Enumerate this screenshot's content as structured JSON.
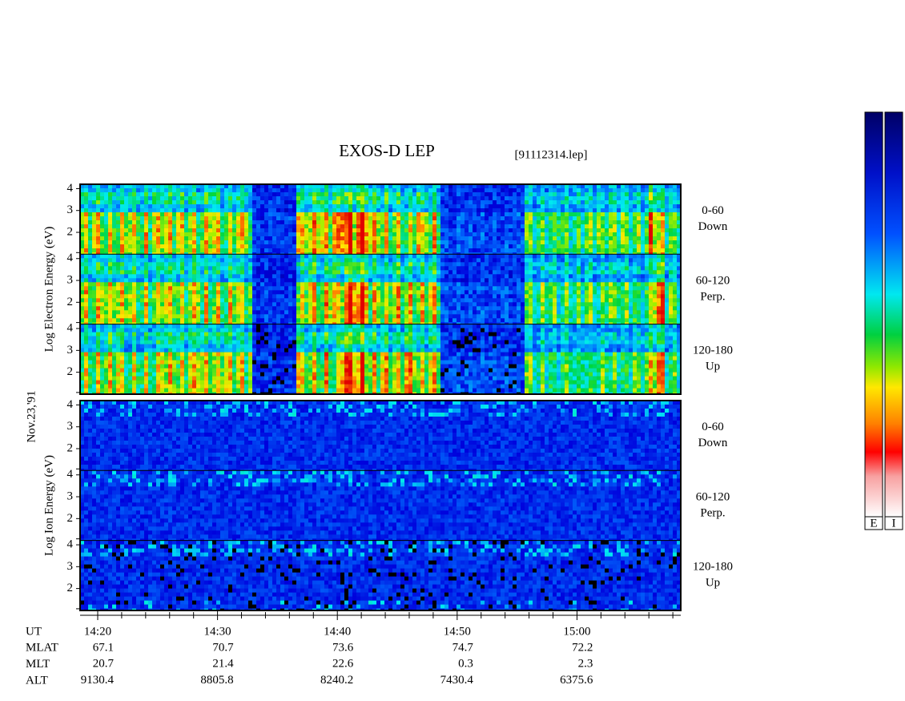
{
  "title": "EXOS-D LEP",
  "file": "[91112314.lep]",
  "date": "Nov.23,'91",
  "electron": {
    "axis_label": "Log Electron Energy (eV)",
    "panels": [
      {
        "angle": "0-60",
        "dir": "Down"
      },
      {
        "angle": "60-120",
        "dir": "Perp."
      },
      {
        "angle": "120-180",
        "dir": "Up"
      }
    ]
  },
  "ion": {
    "axis_label": "Log Ion Energy (eV)",
    "panels": [
      {
        "angle": "0-60",
        "dir": "Down"
      },
      {
        "angle": "60-120",
        "dir": "Perp."
      },
      {
        "angle": "120-180",
        "dir": "Up"
      }
    ]
  },
  "ylim": [
    1,
    4.2
  ],
  "yticks": [
    2,
    3,
    4
  ],
  "xlim": [
    18.53,
    68.66
  ],
  "xticks": [
    {
      "value": 20,
      "label": "14:20"
    },
    {
      "value": 30,
      "label": "14:30"
    },
    {
      "value": 40,
      "label": "14:40"
    },
    {
      "value": 50,
      "label": "14:50"
    },
    {
      "value": 60,
      "label": "15:00"
    }
  ],
  "xminorticks": [
    22,
    24,
    26,
    28,
    32,
    34,
    36,
    38,
    42,
    44,
    46,
    48,
    52,
    54,
    56,
    58,
    62,
    64,
    66,
    68
  ],
  "orbit": {
    "labels": [
      "UT",
      "MLAT",
      "MLT",
      "ALT"
    ],
    "rows": [
      [
        "67.1",
        "70.7",
        "73.6",
        "74.7",
        "72.2"
      ],
      [
        "20.7",
        "21.4",
        "22.6",
        "0.3",
        "2.3"
      ],
      [
        "9130.4",
        "8805.8",
        "8240.2",
        "7430.4",
        "6375.6"
      ]
    ]
  },
  "colorbar_labels": [
    "E",
    "I"
  ]
}
